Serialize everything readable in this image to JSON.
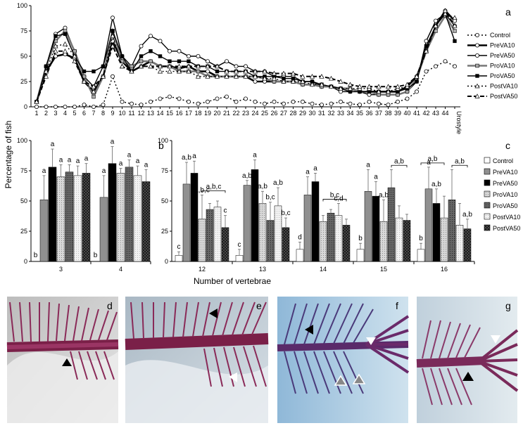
{
  "figure": {
    "panel_labels": [
      "a",
      "b",
      "c",
      "d",
      "e",
      "f",
      "g"
    ],
    "y_axis_title": "Percentage of fish",
    "x_axis_title_b": "Number of vertebrae",
    "photo_labels": [
      "d",
      "e",
      "f",
      "g"
    ],
    "colors": {
      "Control": "#ffffff",
      "PreVA10": "#909090",
      "PreVA50": "#000000",
      "ProVA10": "#c8c8c8",
      "ProVA50": "#555555",
      "PostVA10": "#eaeaea",
      "PostVA50": "#3a3a3a"
    }
  },
  "chart_data": [
    {
      "panel": "a",
      "type": "line",
      "x": [
        "1",
        "2",
        "3",
        "4",
        "5",
        "6",
        "7",
        "8",
        "9",
        "10",
        "11",
        "12",
        "13",
        "14",
        "15",
        "16",
        "17",
        "18",
        "19",
        "20",
        "21",
        "22",
        "23",
        "24",
        "25",
        "26",
        "27",
        "28",
        "29",
        "30",
        "31",
        "32",
        "33",
        "34",
        "35",
        "36",
        "37",
        "38",
        "39",
        "40",
        "41",
        "42",
        "43",
        "44",
        "Urostyle"
      ],
      "ylim": [
        0,
        100
      ],
      "yticks": [
        0,
        25,
        50,
        75,
        100
      ],
      "series": [
        {
          "name": "Control",
          "values": [
            0,
            0,
            0,
            0,
            0,
            2,
            0,
            2,
            30,
            5,
            3,
            2,
            5,
            8,
            10,
            8,
            5,
            3,
            5,
            8,
            10,
            5,
            8,
            5,
            3,
            5,
            3,
            5,
            5,
            3,
            2,
            3,
            5,
            3,
            2,
            5,
            3,
            2,
            5,
            8,
            15,
            35,
            40,
            45,
            40
          ]
        },
        {
          "name": "PreVA10",
          "values": [
            5,
            35,
            50,
            52,
            48,
            25,
            15,
            30,
            65,
            45,
            35,
            40,
            45,
            40,
            40,
            38,
            40,
            35,
            35,
            30,
            30,
            30,
            30,
            25,
            25,
            25,
            25,
            25,
            22,
            22,
            20,
            20,
            18,
            18,
            15,
            15,
            15,
            15,
            15,
            20,
            30,
            55,
            80,
            95,
            85
          ]
        },
        {
          "name": "PreVA50",
          "values": [
            5,
            40,
            72,
            78,
            55,
            30,
            20,
            40,
            88,
            50,
            40,
            60,
            70,
            65,
            55,
            55,
            50,
            50,
            45,
            40,
            45,
            40,
            40,
            35,
            35,
            30,
            30,
            30,
            25,
            25,
            20,
            20,
            15,
            15,
            15,
            12,
            12,
            12,
            12,
            15,
            25,
            65,
            85,
            92,
            80
          ]
        },
        {
          "name": "ProVA10",
          "values": [
            5,
            40,
            65,
            75,
            55,
            30,
            10,
            30,
            75,
            45,
            40,
            45,
            45,
            40,
            40,
            35,
            35,
            35,
            30,
            30,
            30,
            30,
            30,
            30,
            28,
            25,
            25,
            25,
            22,
            22,
            20,
            20,
            18,
            18,
            15,
            15,
            12,
            12,
            12,
            15,
            28,
            55,
            75,
            90,
            75
          ]
        },
        {
          "name": "ProVA50",
          "values": [
            5,
            40,
            70,
            72,
            50,
            35,
            35,
            40,
            75,
            50,
            35,
            50,
            55,
            50,
            45,
            45,
            45,
            40,
            40,
            35,
            35,
            35,
            35,
            30,
            30,
            30,
            28,
            28,
            25,
            25,
            22,
            20,
            18,
            15,
            15,
            15,
            15,
            15,
            15,
            18,
            25,
            60,
            80,
            92,
            65
          ]
        },
        {
          "name": "PostVA10",
          "values": [
            5,
            35,
            60,
            62,
            50,
            25,
            15,
            30,
            70,
            40,
            35,
            40,
            40,
            35,
            35,
            35,
            35,
            30,
            30,
            30,
            30,
            30,
            30,
            30,
            28,
            28,
            25,
            25,
            25,
            22,
            22,
            20,
            18,
            18,
            18,
            18,
            15,
            15,
            18,
            20,
            30,
            55,
            80,
            92,
            88
          ]
        },
        {
          "name": "PostVA50",
          "values": [
            5,
            30,
            55,
            55,
            45,
            25,
            20,
            30,
            60,
            40,
            35,
            40,
            40,
            40,
            40,
            40,
            40,
            40,
            40,
            40,
            35,
            35,
            35,
            35,
            35,
            33,
            33,
            33,
            30,
            30,
            30,
            28,
            25,
            22,
            20,
            20,
            20,
            20,
            20,
            22,
            30,
            55,
            80,
            95,
            80
          ]
        }
      ],
      "legend": [
        "Control",
        "PreVA10",
        "PreVA50",
        "ProVA10",
        "ProVA50",
        "PostVA10",
        "PostVA50"
      ]
    },
    {
      "panel": "b",
      "type": "bar",
      "categories": [
        "3",
        "4"
      ],
      "ylim": [
        0,
        100
      ],
      "yticks": [
        0,
        25,
        50,
        75,
        100
      ],
      "series": [
        {
          "name": "Control",
          "values": [
            0,
            0
          ],
          "err": [
            0,
            0
          ],
          "label": [
            "b",
            "b"
          ]
        },
        {
          "name": "PreVA10",
          "values": [
            51,
            53
          ],
          "err": [
            20,
            18
          ],
          "label": [
            "a",
            "a"
          ]
        },
        {
          "name": "PreVA50",
          "values": [
            78,
            81
          ],
          "err": [
            15,
            14
          ],
          "label": [
            "a",
            "a"
          ]
        },
        {
          "name": "ProVA10",
          "values": [
            70,
            73
          ],
          "err": [
            10,
            4
          ],
          "label": [
            "a",
            "a"
          ]
        },
        {
          "name": "ProVA50",
          "values": [
            74,
            78
          ],
          "err": [
            6,
            6
          ],
          "label": [
            "a",
            "a"
          ]
        },
        {
          "name": "PostVA10",
          "values": [
            71,
            71
          ],
          "err": [
            8,
            8
          ],
          "label": [
            "a",
            "a"
          ]
        },
        {
          "name": "PostVA50",
          "values": [
            73,
            66
          ],
          "err": [
            8,
            10
          ],
          "label": [
            "a",
            "a"
          ]
        }
      ]
    },
    {
      "panel": "c",
      "type": "bar",
      "categories": [
        "12",
        "13",
        "14",
        "15",
        "16"
      ],
      "ylim": [
        0,
        100
      ],
      "yticks": [
        0,
        25,
        50,
        75,
        100
      ],
      "series": [
        {
          "name": "Control",
          "values": [
            5,
            5,
            10,
            10,
            10
          ],
          "err": [
            3,
            5,
            6,
            5,
            5
          ],
          "label": [
            "c",
            "c",
            "d",
            "b",
            "b"
          ]
        },
        {
          "name": "PreVA10",
          "values": [
            64,
            63,
            55,
            58,
            60
          ],
          "err": [
            18,
            4,
            15,
            18,
            18
          ],
          "label": [
            "a,b",
            "a,b",
            "a",
            "a",
            "a"
          ]
        },
        {
          "name": "PreVA50",
          "values": [
            73,
            76,
            66,
            54,
            48
          ],
          "err": [
            10,
            8,
            7,
            12,
            12
          ],
          "label": [
            "a",
            "a",
            "a",
            "a",
            "a,b"
          ]
        },
        {
          "name": "ProVA10",
          "values": [
            35,
            48,
            33,
            33,
            36
          ],
          "err": [
            20,
            10,
            5,
            18,
            18
          ],
          "label": [
            "a,b,c",
            "a,b",
            "",
            "a,b",
            ""
          ]
        },
        {
          "name": "ProVA50",
          "values": [
            43,
            34,
            40,
            61,
            51
          ],
          "err": [
            5,
            15,
            3,
            15,
            25
          ],
          "label": [
            "",
            "b,c",
            "",
            "",
            ""
          ]
        },
        {
          "name": "PostVA10",
          "values": [
            45,
            46,
            38,
            36,
            30
          ],
          "err": [
            5,
            15,
            10,
            10,
            18
          ],
          "label": [
            "",
            "a,b",
            "c,d",
            "",
            ""
          ]
        },
        {
          "name": "PostVA50",
          "values": [
            28,
            28,
            30,
            34,
            27
          ],
          "err": [
            10,
            8,
            5,
            5,
            8
          ],
          "label": [
            "c",
            "b,c",
            "",
            "",
            "a,b"
          ]
        }
      ],
      "brackets": [
        {
          "category": "12",
          "label": "a,b,c"
        },
        {
          "category": "14",
          "label": "b,c"
        },
        {
          "category": "15",
          "label": "a,b"
        },
        {
          "category": "16",
          "label": "a,b"
        },
        {
          "category": "16",
          "label": "a,b",
          "level": 2
        }
      ],
      "legend": [
        "Control",
        "PreVA10",
        "PreVA50",
        "ProVA10",
        "ProVA50",
        "PostVA10",
        "PostVA50"
      ]
    }
  ]
}
